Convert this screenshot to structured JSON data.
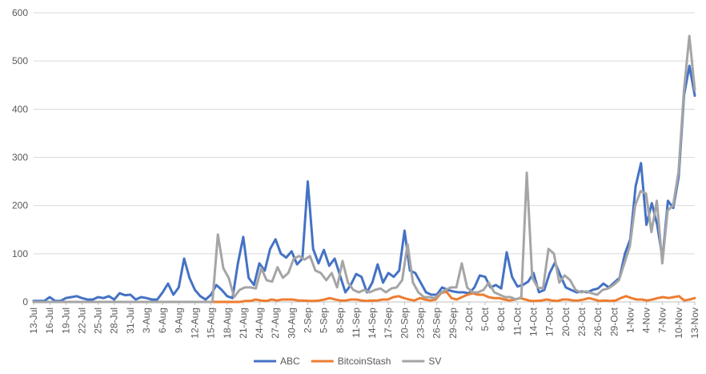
{
  "chart_data": {
    "type": "line",
    "title": "",
    "xlabel": "",
    "ylabel": "",
    "ylim": [
      0,
      600
    ],
    "yticks": [
      0,
      100,
      200,
      300,
      400,
      500,
      600
    ],
    "grid": "horizontal",
    "legend_position": "bottom",
    "x_tick_labels": [
      "13-Jul",
      "16-Jul",
      "19-Jul",
      "22-Jul",
      "25-Jul",
      "28-Jul",
      "31-Jul",
      "3-Aug",
      "6-Aug",
      "9-Aug",
      "12-Aug",
      "15-Aug",
      "18-Aug",
      "21-Aug",
      "24-Aug",
      "27-Aug",
      "30-Aug",
      "2-Sep",
      "5-Sep",
      "8-Sep",
      "11-Sep",
      "14-Sep",
      "17-Sep",
      "20-Sep",
      "23-Sep",
      "26-Sep",
      "29-Sep",
      "2-Oct",
      "5-Oct",
      "8-Oct",
      "11-Oct",
      "14-Oct",
      "17-Oct",
      "20-Oct",
      "23-Oct",
      "26-Oct",
      "29-Oct",
      "1-Nov",
      "4-Nov",
      "7-Nov",
      "10-Nov",
      "13-Nov"
    ],
    "series": [
      {
        "name": "ABC",
        "color": "#4472C4",
        "values": [
          2,
          2,
          2,
          10,
          2,
          2,
          8,
          10,
          12,
          8,
          5,
          5,
          10,
          8,
          12,
          5,
          18,
          14,
          15,
          5,
          10,
          8,
          5,
          5,
          20,
          38,
          15,
          30,
          90,
          50,
          25,
          12,
          5,
          15,
          35,
          25,
          12,
          8,
          80,
          135,
          50,
          35,
          80,
          65,
          110,
          130,
          100,
          92,
          105,
          78,
          90,
          250,
          110,
          80,
          108,
          75,
          90,
          55,
          20,
          35,
          58,
          52,
          20,
          40,
          78,
          40,
          60,
          52,
          65,
          148,
          65,
          60,
          40,
          20,
          15,
          15,
          30,
          25,
          22,
          20,
          20,
          18,
          30,
          55,
          52,
          30,
          35,
          28,
          103,
          52,
          32,
          35,
          42,
          60,
          20,
          25,
          60,
          82,
          55,
          30,
          25,
          20,
          22,
          20,
          25,
          28,
          38,
          30,
          40,
          50,
          100,
          130,
          240,
          288,
          160,
          205,
          160,
          90,
          210,
          195,
          260,
          430,
          490,
          428
        ],
        "color_name": "blue"
      },
      {
        "name": "BitcoinStash",
        "color": "#ED7D31",
        "values": [
          0,
          0,
          0,
          0,
          0,
          0,
          0,
          0,
          0,
          0,
          0,
          0,
          0,
          0,
          0,
          0,
          0,
          0,
          0,
          0,
          0,
          0,
          0,
          0,
          0,
          0,
          0,
          0,
          0,
          0,
          0,
          0,
          0,
          0,
          0,
          0,
          0,
          0,
          0,
          0,
          2,
          2,
          5,
          3,
          2,
          5,
          3,
          5,
          5,
          5,
          3,
          3,
          2,
          2,
          3,
          5,
          8,
          5,
          3,
          3,
          5,
          5,
          3,
          2,
          3,
          3,
          5,
          5,
          10,
          12,
          8,
          5,
          3,
          8,
          5,
          3,
          5,
          18,
          22,
          8,
          5,
          10,
          15,
          18,
          15,
          15,
          10,
          8,
          8,
          5,
          3,
          5,
          8,
          5,
          2,
          2,
          3,
          5,
          3,
          2,
          5,
          5,
          3,
          3,
          5,
          8,
          5,
          2,
          3,
          2,
          3,
          8,
          12,
          8,
          5,
          5,
          3,
          5,
          8,
          10,
          8,
          10,
          12,
          3,
          5,
          8
        ]
      },
      {
        "name": "SV",
        "color": "#A5A5A5",
        "values": [
          0,
          0,
          0,
          0,
          0,
          0,
          0,
          0,
          0,
          0,
          0,
          0,
          0,
          0,
          0,
          0,
          0,
          0,
          0,
          0,
          0,
          0,
          0,
          0,
          0,
          0,
          0,
          0,
          0,
          0,
          0,
          0,
          0,
          0,
          140,
          70,
          50,
          10,
          25,
          30,
          30,
          28,
          70,
          45,
          42,
          72,
          50,
          60,
          90,
          95,
          88,
          95,
          65,
          60,
          45,
          60,
          30,
          85,
          40,
          25,
          20,
          25,
          20,
          25,
          28,
          20,
          28,
          30,
          45,
          120,
          40,
          20,
          10,
          10,
          8,
          18,
          25,
          30,
          30,
          80,
          30,
          20,
          20,
          25,
          40,
          20,
          15,
          10,
          10,
          5,
          10,
          268,
          50,
          30,
          28,
          110,
          100,
          40,
          55,
          45,
          25,
          20,
          22,
          18,
          15,
          25,
          28,
          35,
          45,
          80,
          115,
          200,
          230,
          225,
          145,
          210,
          80,
          190,
          200,
          270,
          440,
          552,
          440
        ]
      }
    ]
  }
}
